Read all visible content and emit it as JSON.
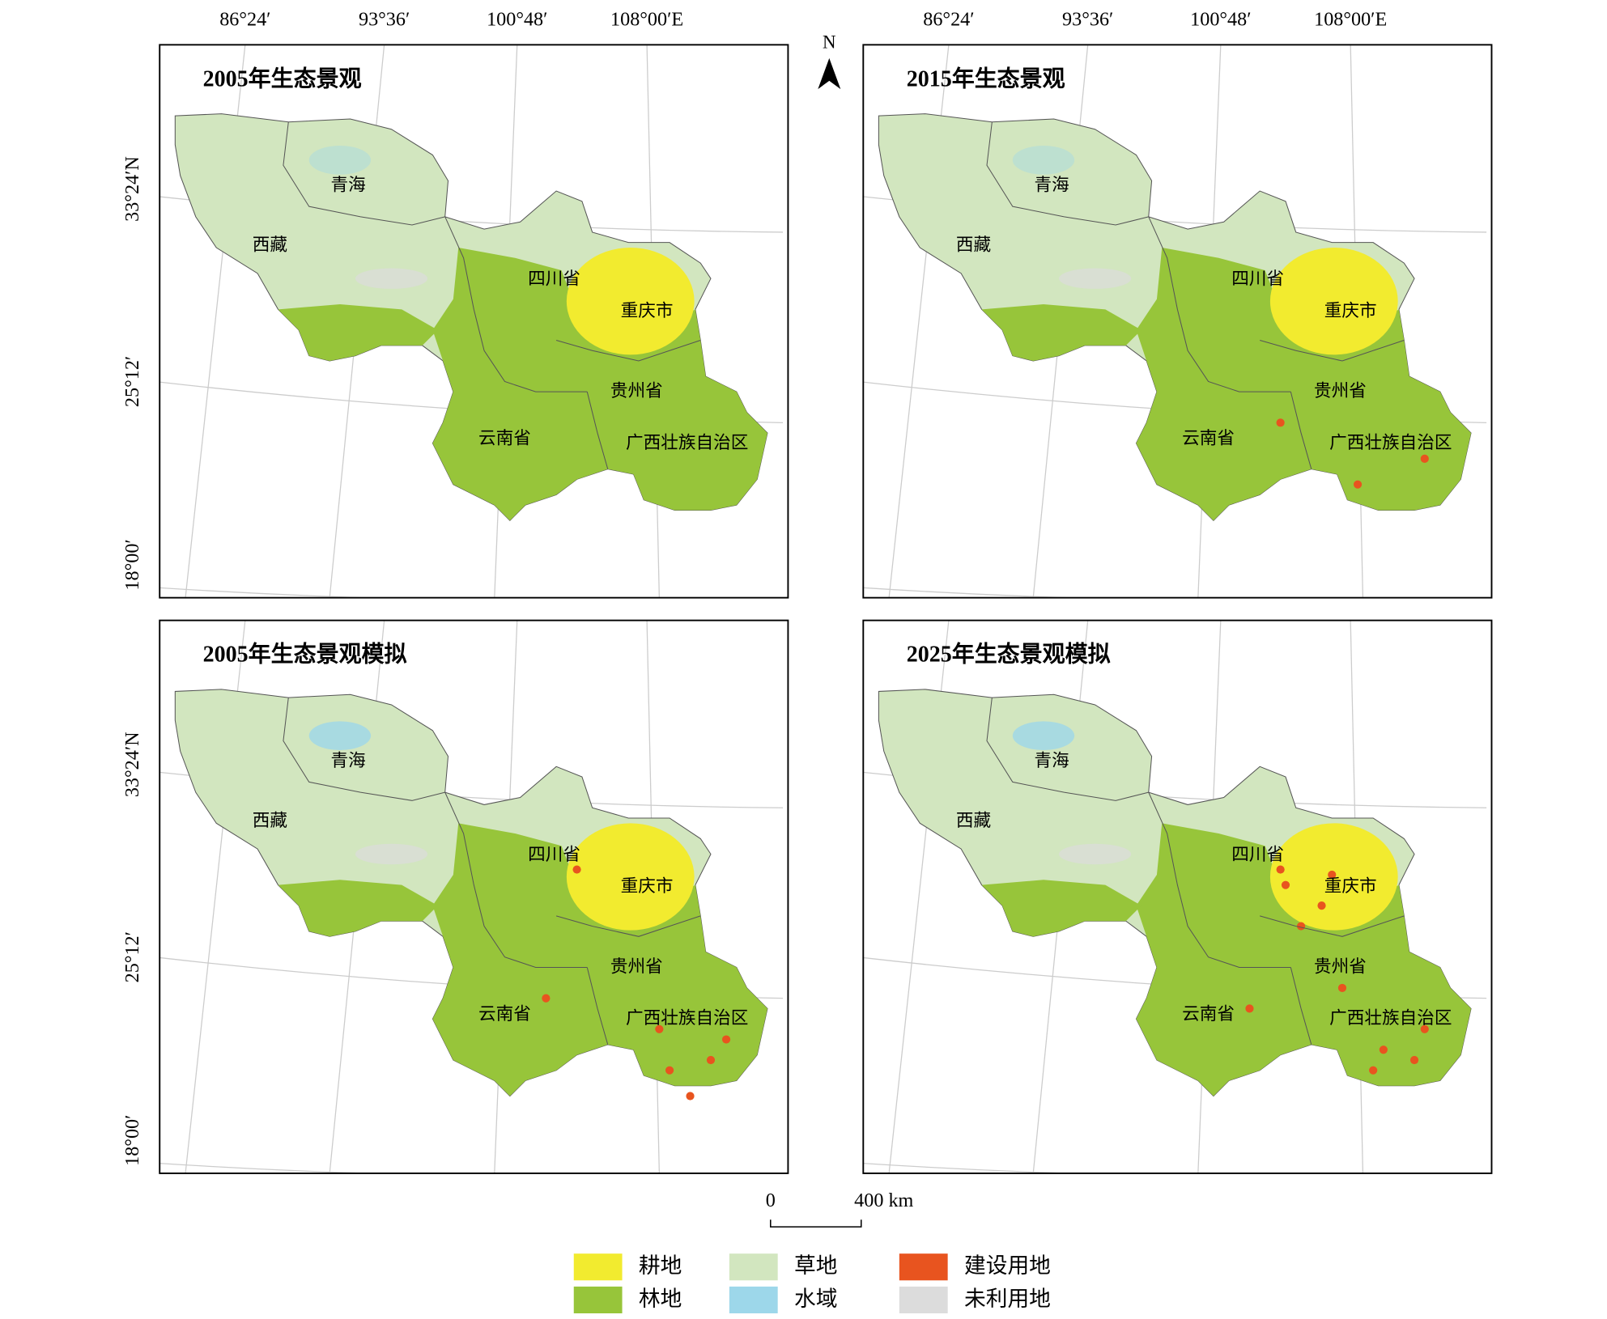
{
  "axes": {
    "top_labels": [
      "86°24′",
      "93°36′",
      "100°48′",
      "108°00′E"
    ],
    "left_labels": [
      "33°24′N",
      "25°12′",
      "18°00′"
    ]
  },
  "north": "N",
  "regions": [
    "青海",
    "西藏",
    "四川省",
    "重庆市",
    "贵州省",
    "云南省",
    "广西壮族自治区"
  ],
  "panels": [
    {
      "title": "2005年生态景观"
    },
    {
      "title": "2015年生态景观"
    },
    {
      "title": "2005年生态景观模拟"
    },
    {
      "title": "2025年生态景观模拟"
    }
  ],
  "scale_bar": {
    "start": "0",
    "end": "400 km"
  },
  "legend": [
    {
      "label": "耕地",
      "color": "#f2eb2f"
    },
    {
      "label": "林地",
      "color": "#97c53a"
    },
    {
      "label": "草地",
      "color": "#d2e6bf"
    },
    {
      "label": "水域",
      "color": "#9dd7ea"
    },
    {
      "label": "建设用地",
      "color": "#e8541f"
    },
    {
      "label": "未利用地",
      "color": "#dcdcdc"
    }
  ]
}
